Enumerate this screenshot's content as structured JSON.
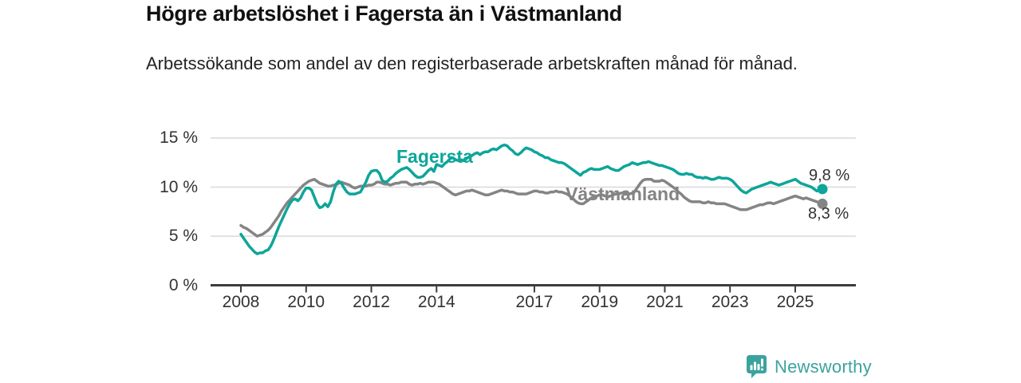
{
  "header": {
    "title": "Högre arbetslöshet i Fagersta än i Västmanland",
    "subtitle": "Arbetssökande som andel av den registerbaserade arbetskraften månad för månad."
  },
  "chart_data": {
    "type": "line",
    "title": "Högre arbetslöshet i Fagersta än i Västmanland",
    "subtitle": "Arbetssökande som andel av den registerbaserade arbetskraften månad för månad.",
    "grid": "horizontal",
    "legend_position": "inline-labels",
    "x_start": 2008.0,
    "x_step_years": 0.0833333,
    "xlim": [
      2007.05,
      2026.9
    ],
    "ylim": [
      0,
      16
    ],
    "x_ticks": [
      2008,
      2010,
      2012,
      2014,
      2017,
      2019,
      2021,
      2023,
      2025
    ],
    "x_tick_labels": [
      "2008",
      "2010",
      "2012",
      "2014",
      "2017",
      "2019",
      "2021",
      "2023",
      "2025"
    ],
    "y_ticks": [
      0,
      5,
      10,
      15
    ],
    "y_tick_labels": [
      "0 %",
      "5 %",
      "10 %",
      "15 %"
    ],
    "axis_color": "#3d3d3d",
    "gridline_color": "#d9d9d9",
    "tick_text_color": "#333333",
    "series": [
      {
        "name": "Fagersta",
        "color": "#0ea59a",
        "end_label": "9,8 %",
        "end_value": 9.8,
        "values": [
          5.2,
          4.8,
          4.4,
          4.0,
          3.7,
          3.4,
          3.2,
          3.3,
          3.3,
          3.5,
          3.6,
          4.0,
          4.6,
          5.3,
          6.0,
          6.6,
          7.2,
          7.8,
          8.3,
          8.7,
          8.8,
          8.6,
          8.9,
          9.5,
          9.9,
          9.9,
          9.7,
          9.0,
          8.3,
          7.9,
          8.0,
          8.3,
          8.0,
          8.5,
          9.5,
          10.3,
          10.6,
          10.4,
          9.9,
          9.5,
          9.3,
          9.3,
          9.3,
          9.4,
          9.5,
          10.0,
          10.5,
          11.2,
          11.6,
          11.7,
          11.7,
          11.4,
          10.7,
          10.5,
          10.6,
          10.9,
          11.1,
          11.4,
          11.6,
          11.8,
          11.9,
          12.0,
          11.8,
          11.5,
          11.2,
          11.0,
          11.0,
          11.1,
          11.4,
          11.7,
          11.9,
          11.6,
          12.3,
          12.2,
          12.1,
          12.4,
          12.6,
          12.9,
          13.0,
          12.8,
          12.7,
          12.8,
          12.7,
          12.9,
          13.1,
          13.2,
          13.4,
          13.5,
          13.3,
          13.5,
          13.6,
          13.6,
          13.8,
          13.9,
          13.8,
          14.0,
          14.2,
          14.3,
          14.2,
          13.9,
          13.7,
          13.4,
          13.3,
          13.5,
          13.8,
          14.0,
          13.9,
          13.8,
          13.6,
          13.5,
          13.3,
          13.2,
          13.0,
          13.0,
          12.8,
          12.7,
          12.6,
          12.5,
          12.5,
          12.4,
          12.2,
          12.0,
          11.8,
          11.6,
          11.4,
          11.2,
          11.5,
          11.6,
          11.8,
          11.9,
          11.8,
          11.8,
          11.8,
          11.9,
          12.0,
          12.1,
          11.9,
          11.8,
          11.7,
          11.7,
          11.9,
          12.1,
          12.2,
          12.3,
          12.5,
          12.4,
          12.3,
          12.4,
          12.5,
          12.5,
          12.6,
          12.5,
          12.4,
          12.3,
          12.2,
          12.2,
          12.1,
          12.0,
          11.9,
          11.8,
          11.6,
          11.4,
          11.3,
          11.3,
          11.4,
          11.3,
          11.3,
          11.1,
          11.0,
          11.0,
          10.9,
          11.0,
          10.9,
          10.8,
          10.8,
          10.9,
          11.0,
          10.9,
          10.9,
          10.9,
          10.8,
          10.6,
          10.3,
          10.0,
          9.7,
          9.5,
          9.4,
          9.6,
          9.8,
          9.9,
          10.0,
          10.1,
          10.2,
          10.3,
          10.4,
          10.5,
          10.4,
          10.3,
          10.2,
          10.3,
          10.4,
          10.5,
          10.6,
          10.7,
          10.8,
          10.6,
          10.4,
          10.3,
          10.2,
          10.1,
          10.0,
          9.8,
          9.6,
          9.7,
          9.8
        ]
      },
      {
        "name": "Västmanland",
        "color": "#848484",
        "end_label": "8,3 %",
        "end_value": 8.3,
        "values": [
          6.1,
          5.9,
          5.8,
          5.6,
          5.4,
          5.2,
          5.0,
          5.1,
          5.2,
          5.4,
          5.6,
          5.9,
          6.3,
          6.7,
          7.1,
          7.6,
          8.0,
          8.4,
          8.7,
          9.0,
          9.3,
          9.6,
          9.9,
          10.2,
          10.4,
          10.6,
          10.7,
          10.8,
          10.6,
          10.4,
          10.3,
          10.2,
          10.1,
          10.1,
          10.2,
          10.2,
          10.4,
          10.5,
          10.4,
          10.3,
          10.2,
          10.0,
          9.9,
          10.0,
          10.1,
          10.1,
          10.1,
          10.2,
          10.2,
          10.3,
          10.5,
          10.5,
          10.4,
          10.3,
          10.3,
          10.2,
          10.3,
          10.4,
          10.4,
          10.5,
          10.5,
          10.5,
          10.3,
          10.2,
          10.3,
          10.3,
          10.4,
          10.3,
          10.4,
          10.5,
          10.5,
          10.5,
          10.4,
          10.3,
          10.1,
          9.9,
          9.7,
          9.5,
          9.3,
          9.2,
          9.3,
          9.4,
          9.5,
          9.6,
          9.6,
          9.7,
          9.6,
          9.5,
          9.4,
          9.3,
          9.2,
          9.2,
          9.3,
          9.4,
          9.5,
          9.6,
          9.7,
          9.6,
          9.6,
          9.5,
          9.5,
          9.4,
          9.3,
          9.3,
          9.3,
          9.3,
          9.4,
          9.5,
          9.6,
          9.6,
          9.5,
          9.5,
          9.4,
          9.4,
          9.5,
          9.5,
          9.6,
          9.5,
          9.5,
          9.4,
          9.3,
          9.1,
          8.9,
          8.6,
          8.4,
          8.3,
          8.3,
          8.5,
          8.7,
          8.9,
          9.0,
          9.1,
          9.2,
          9.2,
          9.1,
          9.0,
          9.1,
          9.2,
          9.3,
          9.3,
          9.4,
          9.4,
          9.4,
          9.3,
          9.4,
          9.6,
          10.0,
          10.4,
          10.7,
          10.8,
          10.8,
          10.8,
          10.6,
          10.6,
          10.6,
          10.7,
          10.6,
          10.4,
          10.2,
          10.0,
          9.8,
          9.5,
          9.3,
          9.0,
          8.8,
          8.6,
          8.5,
          8.5,
          8.5,
          8.5,
          8.4,
          8.4,
          8.5,
          8.4,
          8.4,
          8.3,
          8.3,
          8.3,
          8.3,
          8.2,
          8.1,
          8.0,
          7.9,
          7.8,
          7.7,
          7.7,
          7.7,
          7.8,
          7.9,
          8.0,
          8.1,
          8.2,
          8.2,
          8.3,
          8.4,
          8.4,
          8.3,
          8.4,
          8.5,
          8.6,
          8.7,
          8.8,
          8.9,
          9.0,
          9.1,
          9.0,
          8.9,
          8.8,
          8.9,
          8.8,
          8.7,
          8.6,
          8.5,
          8.4,
          8.3
        ]
      }
    ]
  },
  "footer": {
    "brand": "Newsworthy",
    "brand_color": "#3ba39d"
  }
}
